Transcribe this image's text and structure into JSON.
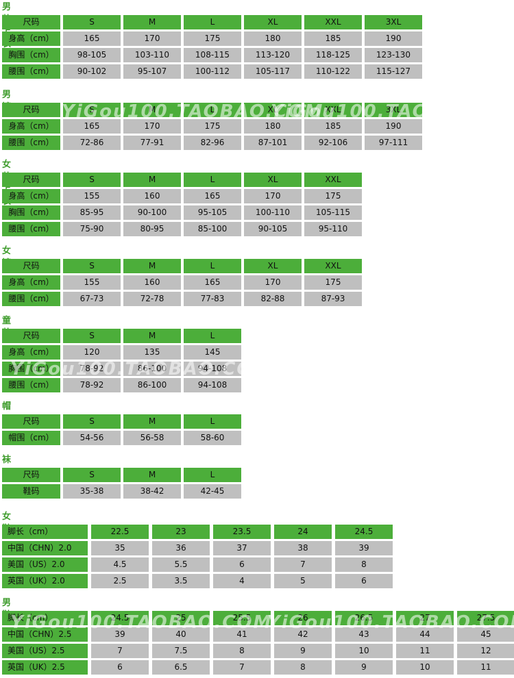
{
  "sections": [
    {
      "title": "男装上衣",
      "header": [
        "尺码",
        "S",
        "M",
        "L",
        "XL",
        "XXL",
        "3XL"
      ],
      "rows": [
        [
          "身高（cm）",
          "165",
          "170",
          "175",
          "180",
          "185",
          "190"
        ],
        [
          "胸围（cm）",
          "98-105",
          "103-110",
          "108-115",
          "113-120",
          "118-125",
          "123-130"
        ],
        [
          "腰围（cm）",
          "90-102",
          "95-107",
          "100-112",
          "105-117",
          "110-122",
          "115-127"
        ]
      ]
    },
    {
      "title": "男裤",
      "header": [
        "尺码",
        "S",
        "M",
        "L",
        "XL",
        "XXL",
        "3XL"
      ],
      "rows": [
        [
          "身高（cm）",
          "165",
          "170",
          "175",
          "180",
          "185",
          "190"
        ],
        [
          "腰围（cm）",
          "72-86",
          "77-91",
          "82-96",
          "87-101",
          "92-106",
          "97-111"
        ]
      ]
    },
    {
      "title": "女装上衣",
      "header": [
        "尺码",
        "S",
        "M",
        "L",
        "XL",
        "XXL"
      ],
      "rows": [
        [
          "身高（cm）",
          "155",
          "160",
          "165",
          "170",
          "175"
        ],
        [
          "胸围（cm）",
          "85-95",
          "90-100",
          "95-105",
          "100-110",
          "105-115"
        ],
        [
          "腰围（cm）",
          "75-90",
          "80-95",
          "85-100",
          "90-105",
          "95-110"
        ]
      ]
    },
    {
      "title": "女裤",
      "header": [
        "尺码",
        "S",
        "M",
        "L",
        "XL",
        "XXL"
      ],
      "rows": [
        [
          "身高（cm）",
          "155",
          "160",
          "165",
          "170",
          "175"
        ],
        [
          "腰围（cm）",
          "67-73",
          "72-78",
          "77-83",
          "82-88",
          "87-93"
        ]
      ]
    },
    {
      "title": "童装",
      "header": [
        "尺码",
        "S",
        "M",
        "L"
      ],
      "rows": [
        [
          "身高（cm）",
          "120",
          "135",
          "145"
        ],
        [
          "胸围（cm）",
          "78-92",
          "86-100",
          "94-108"
        ],
        [
          "腰围（cm）",
          "78-92",
          "86-100",
          "94-108"
        ]
      ]
    },
    {
      "title": "帽",
      "header": [
        "尺码",
        "S",
        "M",
        "L"
      ],
      "rows": [
        [
          "帽围（cm）",
          "54-56",
          "56-58",
          "58-60"
        ]
      ]
    },
    {
      "title": "袜",
      "header": [
        "尺码",
        "S",
        "M",
        "L"
      ],
      "rows": [
        [
          "鞋码",
          "35-38",
          "38-42",
          "42-45"
        ]
      ]
    },
    {
      "title": "女鞋",
      "header": [
        "脚长（cm）",
        "22.5",
        "23",
        "23.5",
        "24",
        "24.5"
      ],
      "rows": [
        [
          "中国（CHN）2.0",
          "35",
          "36",
          "37",
          "38",
          "39"
        ],
        [
          "美国（US）2.0",
          "4.5",
          "5.5",
          "6",
          "7",
          "8"
        ],
        [
          "英国（UK）2.0",
          "2.5",
          "3.5",
          "4",
          "5",
          "6"
        ]
      ]
    },
    {
      "title": "男鞋",
      "header": [
        "脚长（cm）",
        "24.5",
        "25",
        "25.5",
        "26",
        "26.5",
        "27",
        "27.5"
      ],
      "rows": [
        [
          "中国（CHN）2.5",
          "39",
          "40",
          "41",
          "42",
          "43",
          "44",
          "45"
        ],
        [
          "美国（US）2.5",
          "7",
          "7.5",
          "8",
          "9",
          "10",
          "11",
          "12"
        ],
        [
          "英国（UK）2.5",
          "6",
          "6.5",
          "7",
          "8",
          "9",
          "10",
          "11"
        ]
      ]
    }
  ],
  "watermark": "YiGou100.TAOBAO.COM"
}
